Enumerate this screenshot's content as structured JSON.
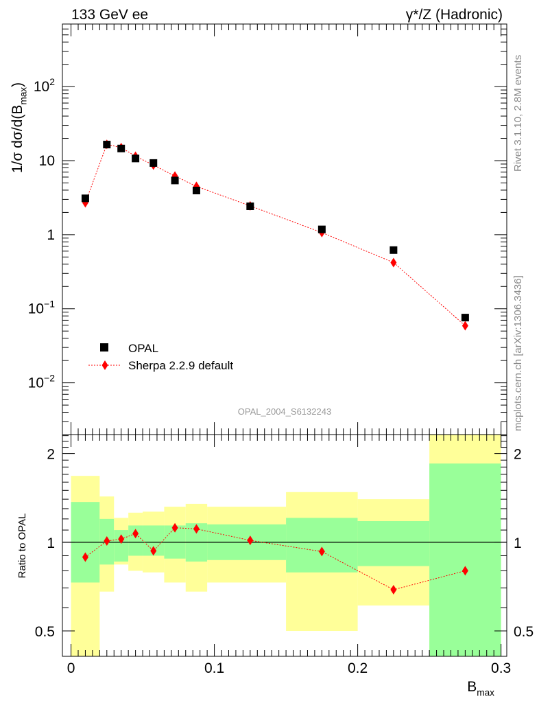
{
  "header": {
    "left": "133 GeV ee",
    "right": "γ*/Z (Hadronic)"
  },
  "side_text": {
    "rivet": "Rivet 3.1.10,  2.8M events",
    "mcplots": "mcplots.cern.ch [arXiv:1306.3436]"
  },
  "watermark": "OPAL_2004_S6132243",
  "legend": {
    "data_label": "OPAL",
    "mc_label": "Sherpa 2.2.9 default"
  },
  "colors": {
    "data": "#000000",
    "mc": "#ff0000",
    "band_inner": "#99ff99",
    "band_outer": "#ffff99"
  },
  "chart_data": [
    {
      "type": "scatter",
      "panel": "main",
      "ylabel": "1/σ dσ/d(B_max)",
      "yscale": "log",
      "ylim": [
        0.002,
        700
      ],
      "xlim": [
        -0.006,
        0.304
      ],
      "y_ticks": [
        {
          "v": 0.01,
          "base": "10",
          "exp": "−2"
        },
        {
          "v": 0.1,
          "base": "10",
          "exp": "−1"
        },
        {
          "v": 1,
          "base": "1",
          "exp": ""
        },
        {
          "v": 10,
          "base": "10",
          "exp": ""
        },
        {
          "v": 100,
          "base": "10",
          "exp": "2"
        }
      ],
      "series": [
        {
          "name": "OPAL",
          "marker": "square",
          "x": [
            0.01,
            0.025,
            0.035,
            0.045,
            0.0575,
            0.0725,
            0.0875,
            0.125,
            0.175,
            0.225,
            0.275
          ],
          "y": [
            3.1,
            16.5,
            14.6,
            10.7,
            9.3,
            5.4,
            3.95,
            2.42,
            1.18,
            0.62,
            0.076
          ]
        },
        {
          "name": "Sherpa 2.2.9 default",
          "marker": "diamond",
          "line": "dotted",
          "x": [
            0.01,
            0.025,
            0.035,
            0.045,
            0.0575,
            0.0725,
            0.0875,
            0.125,
            0.175,
            0.225,
            0.275
          ],
          "y": [
            2.7,
            16.6,
            15.0,
            11.5,
            8.7,
            6.2,
            4.5,
            2.45,
            1.07,
            0.42,
            0.059
          ]
        }
      ]
    },
    {
      "type": "scatter",
      "panel": "ratio",
      "xlabel": "B_max",
      "ylabel": "Ratio to OPAL",
      "yscale": "log",
      "ylim": [
        0.41,
        2.32
      ],
      "xlim": [
        -0.006,
        0.304
      ],
      "y_ticks": [
        0.5,
        1,
        2
      ],
      "x_ticks": [
        0,
        0.1,
        0.2,
        0.3
      ],
      "x_tick_labels": [
        "0",
        "0.1",
        "0.2",
        "0.3"
      ],
      "reference_line": 1,
      "bands": [
        {
          "x0": 0.0,
          "x1": 0.02,
          "inner": [
            0.73,
            1.37
          ],
          "outer": [
            0.4,
            1.68
          ]
        },
        {
          "x0": 0.02,
          "x1": 0.03,
          "inner": [
            0.84,
            1.2
          ],
          "outer": [
            0.68,
            1.43
          ]
        },
        {
          "x0": 0.03,
          "x1": 0.04,
          "inner": [
            0.86,
            1.1
          ],
          "outer": [
            0.84,
            1.21
          ]
        },
        {
          "x0": 0.04,
          "x1": 0.05,
          "inner": [
            0.9,
            1.14
          ],
          "outer": [
            0.8,
            1.26
          ]
        },
        {
          "x0": 0.05,
          "x1": 0.065,
          "inner": [
            0.9,
            1.14
          ],
          "outer": [
            0.79,
            1.27
          ]
        },
        {
          "x0": 0.065,
          "x1": 0.08,
          "inner": [
            0.88,
            1.14
          ],
          "outer": [
            0.73,
            1.32
          ]
        },
        {
          "x0": 0.08,
          "x1": 0.095,
          "inner": [
            0.86,
            1.16
          ],
          "outer": [
            0.68,
            1.35
          ]
        },
        {
          "x0": 0.095,
          "x1": 0.15,
          "inner": [
            0.87,
            1.15
          ],
          "outer": [
            0.73,
            1.32
          ]
        },
        {
          "x0": 0.15,
          "x1": 0.2,
          "inner": [
            0.79,
            1.21
          ],
          "outer": [
            0.5,
            1.48
          ]
        },
        {
          "x0": 0.2,
          "x1": 0.25,
          "inner": [
            0.83,
            1.18
          ],
          "outer": [
            0.61,
            1.4
          ]
        },
        {
          "x0": 0.25,
          "x1": 0.3,
          "inner": [
            0.4,
            1.85
          ],
          "outer": [
            0.4,
            2.4
          ]
        }
      ],
      "series": [
        {
          "name": "Sherpa 2.2.9 default",
          "marker": "diamond",
          "line": "dotted",
          "x": [
            0.01,
            0.025,
            0.035,
            0.045,
            0.0575,
            0.0725,
            0.0875,
            0.125,
            0.175,
            0.225,
            0.275
          ],
          "y": [
            0.89,
            1.01,
            1.025,
            1.07,
            0.935,
            1.12,
            1.11,
            1.015,
            0.93,
            0.69,
            0.8
          ]
        }
      ]
    }
  ]
}
